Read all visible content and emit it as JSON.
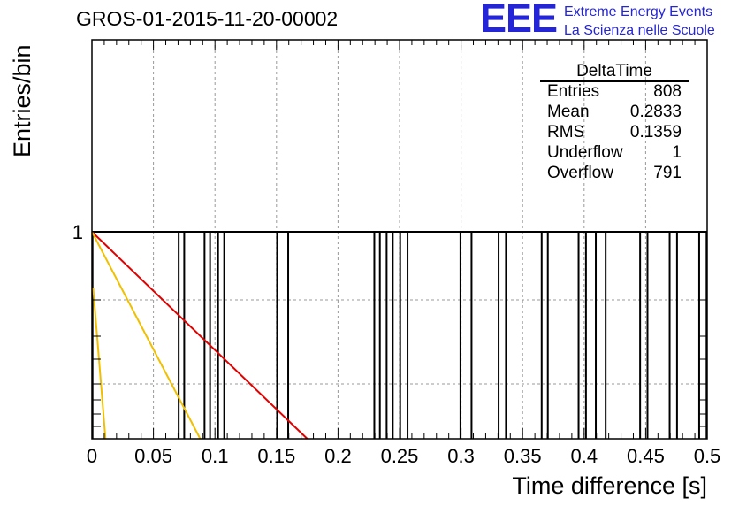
{
  "title": "GROS-01-2015-11-20-00002",
  "logo": {
    "mark": "EEE",
    "line1": "Extreme Energy Events",
    "line2": "La Scienza nelle Scuole"
  },
  "stats": {
    "title": "DeltaTime",
    "rows": [
      {
        "label": "Entries",
        "value": "808"
      },
      {
        "label": "Mean",
        "value": "0.2833"
      },
      {
        "label": "RMS",
        "value": "0.1359"
      },
      {
        "label": "Underflow",
        "value": "1"
      },
      {
        "label": "Overflow",
        "value": "791"
      }
    ]
  },
  "chart_data": {
    "type": "bar",
    "title": "GROS-01-2015-11-20-00002",
    "xlabel": "Time difference [s]",
    "ylabel": "Entries/bin",
    "xlim": [
      0,
      0.5
    ],
    "y_scale": "log",
    "x_ticks": [
      "0",
      "0.05",
      "0.1",
      "0.15",
      "0.2",
      "0.25",
      "0.3",
      "0.35",
      "0.4",
      "0.45",
      "0.5"
    ],
    "y_tick_labels": [
      "1"
    ],
    "grid": true,
    "histogram_entries_at_x": [
      0.0005,
      0.0705,
      0.075,
      0.0915,
      0.096,
      0.1025,
      0.1075,
      0.1505,
      0.1595,
      0.2295,
      0.234,
      0.2395,
      0.2445,
      0.2505,
      0.2565,
      0.2995,
      0.3085,
      0.3305,
      0.3365,
      0.3655,
      0.3705,
      0.3955,
      0.4015,
      0.4095,
      0.4175,
      0.4455,
      0.4515,
      0.4695,
      0.4755,
      0.4935,
      0.4995
    ],
    "bin_content": 1,
    "fit_lines": [
      {
        "color": "#e00000",
        "x": [
          0,
          0.175
        ],
        "y": [
          1,
          0.0
        ]
      },
      {
        "color": "#f0c000",
        "x": [
          0,
          0.088
        ],
        "y": [
          1,
          0.0
        ]
      },
      {
        "color": "#f0c000",
        "x": [
          0.001,
          0.011
        ],
        "y": [
          0.73,
          0.0
        ]
      }
    ]
  }
}
